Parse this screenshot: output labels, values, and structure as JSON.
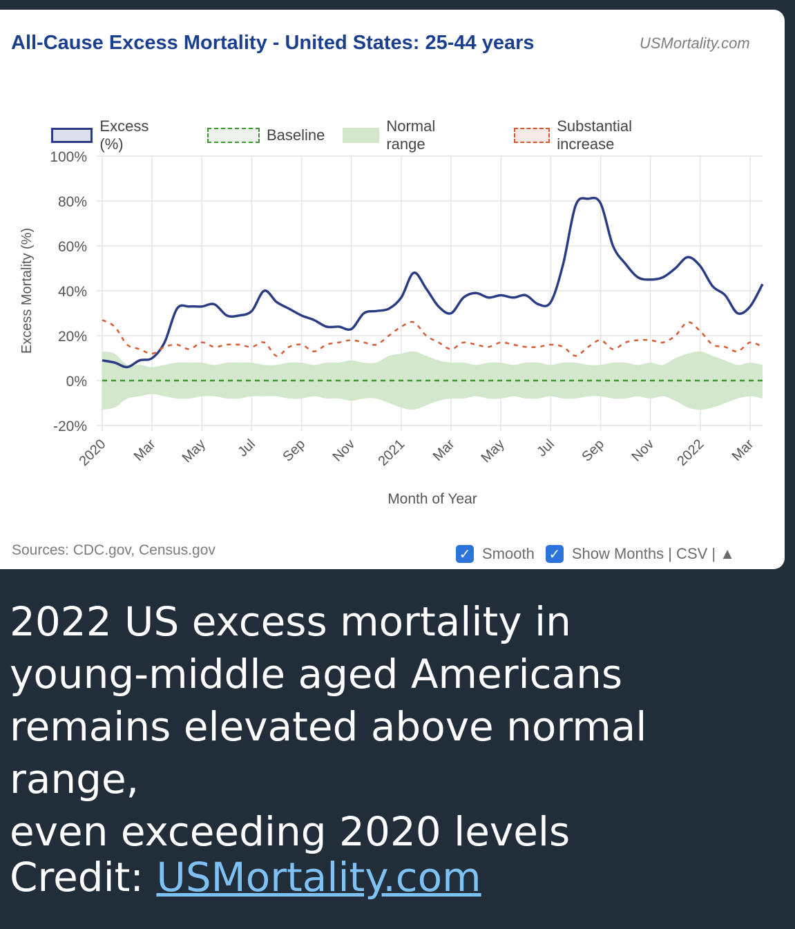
{
  "header": {
    "title": "All-Cause Excess Mortality - United States: 25-44 years",
    "brand": "USMortality.com"
  },
  "legend": {
    "excess": "Excess (%)",
    "baseline": "Baseline",
    "normal": "Normal range",
    "substantial": "Substantial increase"
  },
  "colors": {
    "excess": "#2a3d84",
    "baseline": "#3c9a2d",
    "normal_band": "#d3e7cc",
    "substantial": "#d85a33",
    "grid": "#e4e4e4"
  },
  "footer": {
    "sources": "Sources: CDC.gov, Census.gov",
    "smooth_label": "Smooth",
    "show_months_label": "Show Months | CSV | ▲",
    "check_glyph": "✓"
  },
  "caption": {
    "line1": "2022 US excess mortality in",
    "line2": "young-middle aged Americans",
    "line3": "remains elevated above normal range,",
    "line4": "even exceeding 2020 levels",
    "credit_label": "Credit: ",
    "credit_link": "USMortality.com"
  },
  "chart_data": {
    "type": "line",
    "title": "All-Cause Excess Mortality - United States: 25-44 years",
    "xlabel": "Month of Year",
    "ylabel": "Excess Mortality (%)",
    "ylim": [
      -20,
      100
    ],
    "yticks": [
      -20,
      0,
      20,
      40,
      60,
      80,
      100
    ],
    "ytick_labels": [
      "-20%",
      "0%",
      "20%",
      "40%",
      "60%",
      "80%",
      "100%"
    ],
    "xlim": [
      0,
      26.5
    ],
    "xticks": [
      0,
      2,
      4,
      6,
      8,
      10,
      12,
      14,
      16,
      18,
      20,
      22,
      24,
      26
    ],
    "xtick_labels": [
      "2020",
      "Mar",
      "May",
      "Jul",
      "Sep",
      "Nov",
      "2021",
      "Mar",
      "May",
      "Jul",
      "Sep",
      "Nov",
      "2022",
      "Mar"
    ],
    "grid": true,
    "legend_position": "top",
    "series": [
      {
        "name": "Excess (%)",
        "style": "solid",
        "x": [
          0,
          0.5,
          1,
          1.5,
          2,
          2.5,
          3,
          3.5,
          4,
          4.5,
          5,
          5.5,
          6,
          6.5,
          7,
          7.5,
          8,
          8.5,
          9,
          9.5,
          10,
          10.5,
          11,
          11.5,
          12,
          12.5,
          13,
          13.5,
          14,
          14.5,
          15,
          15.5,
          16,
          16.5,
          17,
          17.5,
          18,
          18.5,
          19,
          19.5,
          20,
          20.5,
          21,
          21.5,
          22,
          22.5,
          23,
          23.5,
          24,
          24.5,
          25,
          25.5,
          26,
          26.5
        ],
        "values": [
          9,
          8,
          6,
          9,
          10,
          17,
          32,
          33,
          33,
          34,
          29,
          29,
          31,
          40,
          35,
          32,
          29,
          27,
          24,
          24,
          23,
          30,
          31,
          32,
          37,
          48,
          41,
          33,
          30,
          37,
          39,
          37,
          38,
          37,
          38,
          34,
          35,
          52,
          78,
          81,
          79,
          60,
          52,
          46,
          45,
          46,
          50,
          55,
          51,
          42,
          38,
          30,
          33,
          43
        ]
      },
      {
        "name": "Substantial increase",
        "style": "dashed",
        "x": [
          0,
          0.5,
          1,
          1.5,
          2,
          2.5,
          3,
          3.5,
          4,
          4.5,
          5,
          5.5,
          6,
          6.5,
          7,
          7.5,
          8,
          8.5,
          9,
          9.5,
          10,
          10.5,
          11,
          11.5,
          12,
          12.5,
          13,
          13.5,
          14,
          14.5,
          15,
          15.5,
          16,
          16.5,
          17,
          17.5,
          18,
          18.5,
          19,
          19.5,
          20,
          20.5,
          21,
          21.5,
          22,
          22.5,
          23,
          23.5,
          24,
          24.5,
          25,
          25.5,
          26,
          26.5
        ],
        "values": [
          27,
          24,
          16,
          14,
          12,
          15,
          16,
          14,
          17,
          15,
          16,
          16,
          15,
          17,
          11,
          15,
          16,
          13,
          16,
          17,
          18,
          17,
          16,
          20,
          24,
          26,
          20,
          17,
          14,
          17,
          16,
          15,
          17,
          16,
          15,
          15,
          16,
          15,
          11,
          15,
          18,
          14,
          17,
          18,
          18,
          17,
          20,
          26,
          22,
          16,
          15,
          13,
          17,
          15
        ]
      },
      {
        "name": "Baseline",
        "style": "dashed",
        "x": [
          0,
          26.5
        ],
        "values": [
          0,
          0
        ]
      }
    ],
    "normal_range": {
      "x": [
        0,
        0.5,
        1,
        1.5,
        2,
        2.5,
        3,
        3.5,
        4,
        4.5,
        5,
        5.5,
        6,
        6.5,
        7,
        7.5,
        8,
        8.5,
        9,
        9.5,
        10,
        10.5,
        11,
        11.5,
        12,
        12.5,
        13,
        13.5,
        14,
        14.5,
        15,
        15.5,
        16,
        16.5,
        17,
        17.5,
        18,
        18.5,
        19,
        19.5,
        20,
        20.5,
        21,
        21.5,
        22,
        22.5,
        23,
        23.5,
        24,
        24.5,
        25,
        25.5,
        26,
        26.5
      ],
      "upper": [
        13,
        12,
        7,
        7,
        6,
        7,
        8,
        8,
        8,
        7,
        8,
        8,
        8,
        7,
        7,
        8,
        8,
        7,
        8,
        8,
        9,
        8,
        8,
        11,
        12,
        13,
        11,
        9,
        8,
        8,
        7,
        8,
        8,
        7,
        8,
        8,
        7,
        8,
        8,
        7,
        7,
        8,
        8,
        7,
        8,
        7,
        10,
        12,
        13,
        11,
        9,
        7,
        8,
        7
      ],
      "lower": [
        -13,
        -12,
        -8,
        -7,
        -6,
        -7,
        -8,
        -8,
        -7,
        -7,
        -8,
        -8,
        -7,
        -7,
        -7,
        -8,
        -8,
        -7,
        -8,
        -8,
        -9,
        -8,
        -8,
        -10,
        -12,
        -13,
        -11,
        -9,
        -8,
        -8,
        -7,
        -8,
        -8,
        -7,
        -8,
        -8,
        -7,
        -8,
        -8,
        -7,
        -7,
        -8,
        -8,
        -7,
        -8,
        -7,
        -9,
        -12,
        -13,
        -12,
        -10,
        -8,
        -7,
        -8
      ]
    }
  }
}
